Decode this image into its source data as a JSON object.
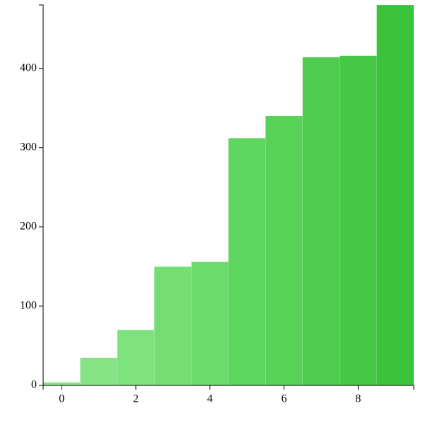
{
  "chart_data": {
    "type": "bar",
    "x": [
      0,
      1,
      2,
      3,
      4,
      5,
      6,
      7,
      8,
      9
    ],
    "values": [
      4,
      35,
      70,
      150,
      156,
      312,
      340,
      414,
      416,
      480
    ],
    "colors": [
      "#8be68b",
      "#86e486",
      "#7ee27e",
      "#74de74",
      "#6cdb6c",
      "#5fd65f",
      "#57d257",
      "#4dcc4d",
      "#45c945",
      "#3bc43b"
    ],
    "xlim": [
      -0.5,
      9.5
    ],
    "xticks": [
      0,
      2,
      4,
      6,
      8
    ],
    "ylim": [
      0,
      480
    ],
    "yticks": [
      0,
      100,
      200,
      300,
      400
    ]
  }
}
